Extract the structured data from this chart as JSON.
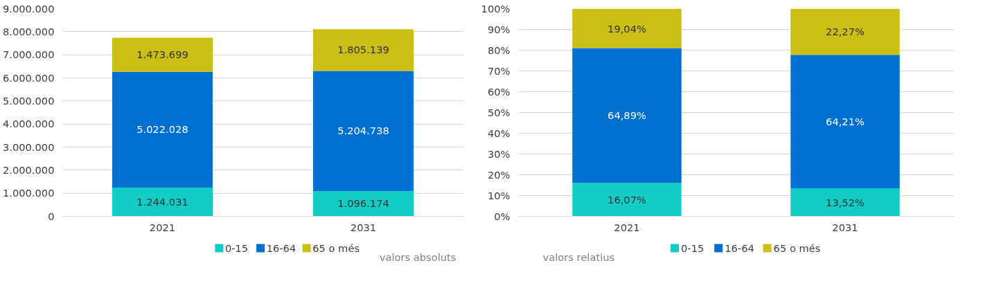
{
  "chart_data": [
    {
      "type": "bar",
      "stacked": true,
      "categories": [
        "2021",
        "2031"
      ],
      "series": [
        {
          "name": "0-15",
          "color": "#11cdc6",
          "values": [
            1244031,
            1096174
          ],
          "value_labels": [
            "1.244.031",
            "1.096.174"
          ]
        },
        {
          "name": "16-64",
          "color": "#0070d0",
          "values": [
            5022028,
            5204738
          ],
          "value_labels": [
            "5.022.028",
            "5.204.738"
          ]
        },
        {
          "name": "65 o més",
          "color": "#cbbf16",
          "values": [
            1473699,
            1805139
          ],
          "value_labels": [
            "1.473.699",
            "1.805.139"
          ]
        }
      ],
      "ylim": [
        0,
        9000000
      ],
      "yticks": [
        {
          "value": 0,
          "label": "0"
        },
        {
          "value": 1000000,
          "label": "1.000.000"
        },
        {
          "value": 2000000,
          "label": "2.000.000"
        },
        {
          "value": 3000000,
          "label": "3.000.000"
        },
        {
          "value": 4000000,
          "label": "4.000.000"
        },
        {
          "value": 5000000,
          "label": "5.000.000"
        },
        {
          "value": 6000000,
          "label": "6.000.000"
        },
        {
          "value": 7000000,
          "label": "7.000.000"
        },
        {
          "value": 8000000,
          "label": "8.000.000"
        },
        {
          "value": 9000000,
          "label": "9.000.000"
        }
      ],
      "grid": "y",
      "legend": "bottom",
      "annotations": [
        "valors absoluts"
      ]
    },
    {
      "type": "bar",
      "stacked": true,
      "categories": [
        "2021",
        "2031"
      ],
      "series": [
        {
          "name": "0-15",
          "color": "#11cdc6",
          "values": [
            16.07,
            13.52
          ],
          "value_labels": [
            "16,07%",
            "13,52%"
          ]
        },
        {
          "name": "16-64",
          "color": "#0070d0",
          "values": [
            64.89,
            64.21
          ],
          "value_labels": [
            "64,89%",
            "64,21%"
          ]
        },
        {
          "name": "65 o més",
          "color": "#cbbf16",
          "values": [
            19.04,
            22.27
          ],
          "value_labels": [
            "19,04%",
            "22,27%"
          ]
        }
      ],
      "ylim": [
        0,
        100
      ],
      "yticks": [
        {
          "value": 0,
          "label": "0%"
        },
        {
          "value": 10,
          "label": "10%"
        },
        {
          "value": 20,
          "label": "20%"
        },
        {
          "value": 30,
          "label": "30%"
        },
        {
          "value": 40,
          "label": "40%"
        },
        {
          "value": 50,
          "label": "50%"
        },
        {
          "value": 60,
          "label": "60%"
        },
        {
          "value": 70,
          "label": "70%"
        },
        {
          "value": 80,
          "label": "80%"
        },
        {
          "value": 90,
          "label": "90%"
        },
        {
          "value": 100,
          "label": "100%"
        }
      ],
      "grid": "y",
      "legend": "bottom",
      "annotations": [
        "valors relatius"
      ]
    }
  ]
}
